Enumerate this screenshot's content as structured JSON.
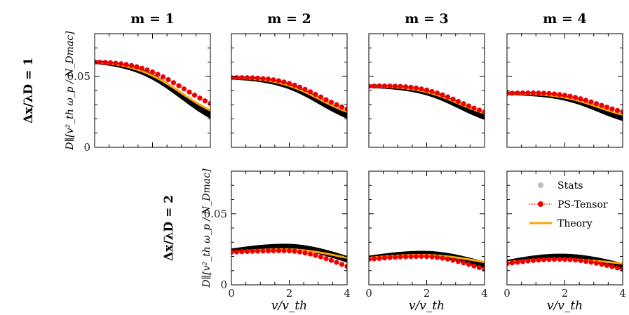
{
  "chart_data": {
    "type": "line",
    "columns": [
      "m = 1",
      "m = 2",
      "m = 3",
      "m = 4"
    ],
    "rows": [
      "Δx/λD = 1",
      "Δx/λD = 2"
    ],
    "ylabel": "D∥[v²_th ω_p / N_Dmac]",
    "xlabel": "v/v_th",
    "xlim": [
      0,
      4
    ],
    "ylim": [
      0,
      0.08
    ],
    "xticks": [
      "0",
      "2",
      "4"
    ],
    "yticks": [
      "0",
      "0.05"
    ],
    "legend": {
      "location": "top-right of bottom-right panel",
      "entries": [
        "Stats",
        "PS-Tensor",
        "Theory"
      ]
    },
    "panels": [
      {
        "row": 0,
        "col": 0,
        "x0": 0.06,
        "fall_v": 3.0,
        "fall_w": 0.85,
        "theory_end": 0.026,
        "stats_end": 0.023,
        "stats_spread": 0.0015,
        "ps_end": 0.031
      },
      {
        "row": 0,
        "col": 1,
        "x0": 0.049,
        "fall_v": 3.05,
        "fall_w": 0.75,
        "theory_end": 0.025,
        "stats_end": 0.023,
        "stats_spread": 0.0015,
        "ps_end": 0.027
      },
      {
        "row": 0,
        "col": 2,
        "x0": 0.043,
        "fall_v": 3.1,
        "fall_w": 0.72,
        "theory_end": 0.024,
        "stats_end": 0.022,
        "stats_spread": 0.0014,
        "ps_end": 0.025
      },
      {
        "row": 0,
        "col": 3,
        "x0": 0.038,
        "fall_v": 3.15,
        "fall_w": 0.7,
        "theory_end": 0.023,
        "stats_end": 0.021,
        "stats_spread": 0.0013,
        "ps_end": 0.025
      },
      {
        "row": 1,
        "col": 1,
        "bump": [
          0.024,
          0.027,
          0.018
        ],
        "theory": [
          0.023,
          0.025,
          0.019
        ],
        "ps": [
          0.023,
          0.024,
          0.013
        ]
      },
      {
        "row": 1,
        "col": 2,
        "bump": [
          0.019,
          0.022,
          0.014
        ],
        "theory": [
          0.019,
          0.021,
          0.016
        ],
        "ps": [
          0.018,
          0.02,
          0.011
        ]
      },
      {
        "row": 1,
        "col": 3,
        "bump": [
          0.016,
          0.02,
          0.013
        ],
        "theory": [
          0.016,
          0.018,
          0.015
        ],
        "ps": [
          0.015,
          0.018,
          0.011
        ]
      }
    ],
    "colors": {
      "stats": "#000000",
      "stats_legend": "#bdbdbd",
      "ps_tensor": "#ee0000",
      "theory": "#ffa500"
    }
  }
}
